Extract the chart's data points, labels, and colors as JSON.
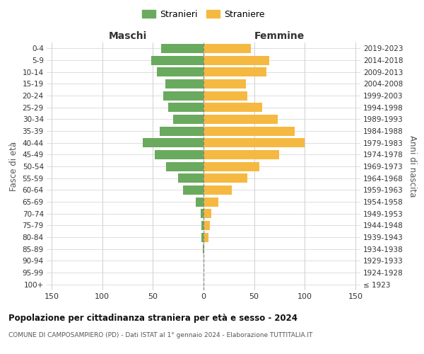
{
  "age_groups": [
    "100+",
    "95-99",
    "90-94",
    "85-89",
    "80-84",
    "75-79",
    "70-74",
    "65-69",
    "60-64",
    "55-59",
    "50-54",
    "45-49",
    "40-44",
    "35-39",
    "30-34",
    "25-29",
    "20-24",
    "15-19",
    "10-14",
    "5-9",
    "0-4"
  ],
  "birth_years": [
    "≤ 1923",
    "1924-1928",
    "1929-1933",
    "1934-1938",
    "1939-1943",
    "1944-1948",
    "1949-1953",
    "1954-1958",
    "1959-1963",
    "1964-1968",
    "1969-1973",
    "1974-1978",
    "1979-1983",
    "1984-1988",
    "1989-1993",
    "1994-1998",
    "1999-2003",
    "2004-2008",
    "2009-2013",
    "2014-2018",
    "2019-2023"
  ],
  "maschi": [
    0,
    0,
    0,
    1,
    2,
    2,
    3,
    8,
    20,
    25,
    37,
    48,
    60,
    43,
    30,
    35,
    40,
    38,
    46,
    52,
    42
  ],
  "femmine": [
    0,
    0,
    0,
    1,
    5,
    6,
    8,
    15,
    28,
    43,
    55,
    75,
    100,
    90,
    73,
    58,
    43,
    42,
    62,
    65,
    47
  ],
  "male_color": "#6aaa5e",
  "female_color": "#f5b942",
  "grid_color": "#d0d0d0",
  "zero_line_color": "#888888",
  "xlim": 155,
  "title": "Popolazione per cittadinanza straniera per età e sesso - 2024",
  "subtitle": "COMUNE DI CAMPOSAMPIERO (PD) - Dati ISTAT al 1° gennaio 2024 - Elaborazione TUTTITALIA.IT",
  "xlabel_left": "Maschi",
  "xlabel_right": "Femmine",
  "ylabel_left": "Fasce di età",
  "ylabel_right": "Anni di nascita",
  "legend_maschi": "Stranieri",
  "legend_femmine": "Straniere",
  "bg_color": "#ffffff",
  "xtick_vals": [
    -150,
    -100,
    -50,
    0,
    50,
    100,
    150
  ]
}
